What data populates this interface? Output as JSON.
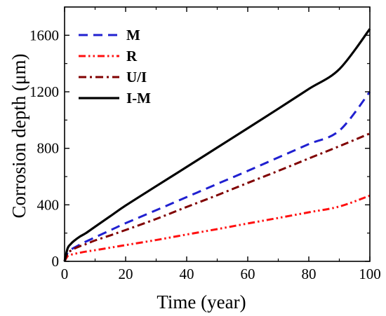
{
  "chart_data": {
    "type": "line",
    "xlabel": "Time (year)",
    "ylabel": "Corrosion depth (μm)",
    "xlim": [
      0,
      100
    ],
    "ylim": [
      0,
      1800
    ],
    "x_ticks": [
      0,
      20,
      40,
      60,
      80,
      100
    ],
    "y_ticks": [
      0,
      400,
      800,
      1200,
      1600
    ],
    "grid": false,
    "legend_position": "top-left",
    "series": [
      {
        "name": "M",
        "color": "#2020d0",
        "dash": "long-dash",
        "x": [
          0,
          1,
          2,
          3,
          5,
          7,
          10,
          15,
          20,
          30,
          40,
          50,
          60,
          70,
          80,
          90,
          100
        ],
        "y": [
          0,
          62,
          82,
          95,
          118,
          140,
          170,
          220,
          270,
          362,
          455,
          548,
          640,
          735,
          830,
          925,
          1200
        ]
      },
      {
        "name": "R",
        "color": "#ff1010",
        "dash": "dash-dot-dot",
        "x": [
          0,
          1,
          2,
          3,
          5,
          7,
          10,
          15,
          20,
          30,
          40,
          50,
          60,
          70,
          80,
          90,
          100
        ],
        "y": [
          0,
          37,
          46,
          52,
          61,
          69,
          79,
          97,
          115,
          151,
          190,
          228,
          268,
          307,
          347,
          388,
          465
        ]
      },
      {
        "name": "U/I",
        "color": "#800000",
        "dash": "dash-dot",
        "x": [
          0,
          1,
          2,
          3,
          5,
          7,
          10,
          15,
          20,
          30,
          40,
          50,
          60,
          70,
          80,
          90,
          100
        ],
        "y": [
          0,
          58,
          75,
          88,
          107,
          122,
          148,
          184,
          222,
          300,
          385,
          468,
          555,
          640,
          728,
          815,
          905
        ]
      },
      {
        "name": "I-M",
        "color": "#000000",
        "dash": "solid",
        "x": [
          0,
          1,
          2,
          3,
          5,
          7,
          10,
          15,
          20,
          30,
          40,
          50,
          60,
          70,
          80,
          90,
          100
        ],
        "y": [
          0,
          92,
          122,
          143,
          175,
          200,
          245,
          320,
          395,
          532,
          668,
          805,
          942,
          1080,
          1220,
          1360,
          1645
        ]
      }
    ]
  }
}
